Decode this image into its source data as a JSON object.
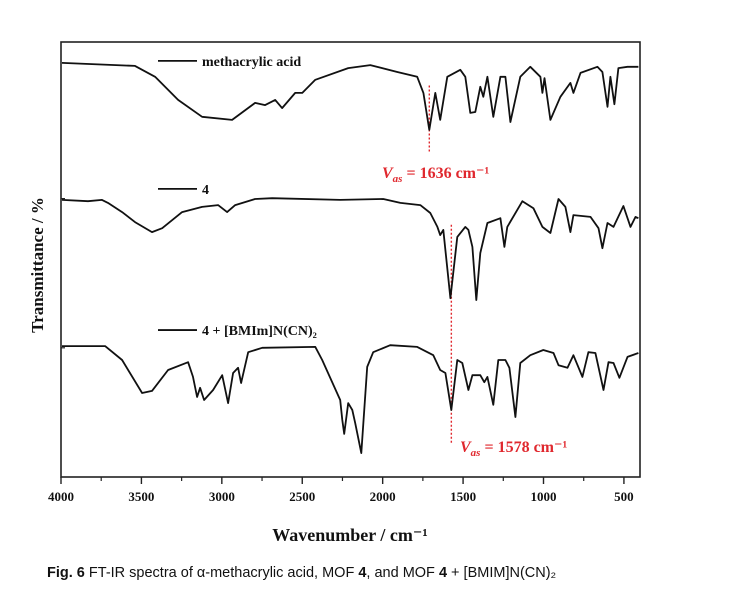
{
  "chart_data": {
    "type": "line",
    "title": "",
    "xlabel": "Wavenumber / cm⁻¹",
    "ylabel": "Transmittance / %",
    "xlim": [
      4000,
      400
    ],
    "ylim": [
      0,
      100
    ],
    "x_reversed": true,
    "grid": false,
    "xticks": [
      4000,
      3500,
      3000,
      2500,
      2000,
      1500,
      1000,
      500
    ],
    "xtick_labels": [
      "4000",
      "3500",
      "3000",
      "2500",
      "2000",
      "1500",
      "1000",
      "500"
    ],
    "xminor_ticks": [
      3750,
      3250,
      2750,
      2250,
      1750,
      1250,
      750
    ],
    "yticks_unlabeled": [
      64,
      29.7
    ],
    "legend_placement": "inline-left",
    "line_color": "#111111",
    "annotation_color": "#e0282e",
    "series": [
      {
        "name": "methacrylic acid",
        "x": [
          3994,
          3540,
          3415,
          3272,
          3123,
          2936,
          2793,
          2731,
          2668,
          2625,
          2544,
          2500,
          2419,
          2214,
          2077,
          1909,
          1785,
          1747,
          1710,
          1673,
          1642,
          1598,
          1517,
          1486,
          1455,
          1424,
          1393,
          1374,
          1349,
          1312,
          1268,
          1237,
          1206,
          1144,
          1082,
          1019,
          1007,
          994,
          957,
          895,
          833,
          814,
          770,
          665,
          634,
          602,
          584,
          559,
          534,
          478,
          410
        ],
        "y": [
          95.2,
          94.5,
          92,
          86.7,
          82.8,
          82.1,
          86,
          85.5,
          86.7,
          84.8,
          88.3,
          88.3,
          91.3,
          94,
          94.7,
          93.1,
          92,
          88.3,
          79.8,
          88.3,
          82.1,
          92,
          93.6,
          92,
          83.7,
          83.9,
          89.7,
          87.4,
          92,
          82.8,
          92,
          92,
          81.6,
          92,
          94.3,
          92,
          88.3,
          91.7,
          82.1,
          87.4,
          90.6,
          88.3,
          92.9,
          94.3,
          93.1,
          85.1,
          92,
          85.7,
          94,
          94.3,
          94.3
        ]
      },
      {
        "name": "4",
        "x": [
          3994,
          3832,
          3745,
          3708,
          3620,
          3540,
          3434,
          3371,
          3247,
          3123,
          3023,
          2967,
          2917,
          2793,
          2687,
          2264,
          1996,
          1890,
          1766,
          1704,
          1660,
          1642,
          1623,
          1579,
          1536,
          1486,
          1467,
          1442,
          1418,
          1393,
          1349,
          1268,
          1243,
          1225,
          1131,
          1063,
          1007,
          957,
          907,
          864,
          833,
          814,
          708,
          658,
          634,
          602,
          565,
          503,
          459,
          428,
          410
        ],
        "y": [
          63.7,
          63.4,
          63.7,
          63,
          60.9,
          58.6,
          56.3,
          57.2,
          60.9,
          62.1,
          62.5,
          60.9,
          62.5,
          63.9,
          64.1,
          63.7,
          63.9,
          63,
          62.5,
          60.7,
          57.5,
          55.6,
          56.8,
          41.1,
          55.2,
          57.5,
          56.8,
          52.9,
          40.7,
          51.5,
          58.4,
          59.5,
          52.9,
          57.5,
          63.4,
          61.8,
          57.5,
          56.1,
          63.9,
          62.1,
          56.3,
          60.2,
          59.8,
          57.2,
          52.6,
          58.4,
          57.5,
          62.3,
          57.5,
          59.8,
          59.5
        ]
      },
      {
        "name": "4 + [BMIm]N(CN)₂",
        "x": [
          3994,
          3726,
          3620,
          3496,
          3434,
          3334,
          3210,
          3179,
          3154,
          3135,
          3110,
          3054,
          2998,
          2961,
          2930,
          2899,
          2880,
          2836,
          2749,
          2419,
          2376,
          2264,
          2251,
          2239,
          2214,
          2189,
          2171,
          2133,
          2096,
          2059,
          1953,
          1785,
          1685,
          1642,
          1610,
          1573,
          1536,
          1505,
          1467,
          1442,
          1393,
          1368,
          1349,
          1312,
          1281,
          1237,
          1212,
          1175,
          1144,
          1082,
          1001,
          938,
          907,
          851,
          814,
          758,
          721,
          677,
          627,
          596,
          565,
          528,
          478,
          410
        ],
        "y": [
          30.1,
          30.1,
          26.9,
          19.3,
          19.8,
          24.6,
          26.4,
          23,
          18.4,
          20.5,
          17.7,
          20,
          23.4,
          17,
          23.9,
          25.1,
          21.6,
          28.7,
          29.7,
          29.9,
          26.9,
          17.7,
          13.1,
          9.9,
          17,
          15.4,
          12.4,
          5.5,
          25.3,
          28.7,
          30.3,
          29.9,
          28,
          24.6,
          23.9,
          15.4,
          26.9,
          26.2,
          20,
          23.4,
          23.4,
          21.8,
          23,
          16.6,
          26.9,
          26.9,
          25.1,
          13.8,
          26.2,
          28,
          29.2,
          28.5,
          25.7,
          25.1,
          28,
          23,
          28.7,
          28.5,
          20,
          26.4,
          26.2,
          22.8,
          27.6,
          28.5
        ]
      }
    ],
    "annotations": [
      {
        "symbol": "V",
        "subscript": "as",
        "text": " = 1636 cm⁻¹",
        "x": 1710,
        "y_range": [
          74.5,
          90
        ]
      },
      {
        "symbol": "V",
        "subscript": "as",
        "text": " = 1578 cm⁻¹",
        "x": 1573,
        "y_range": [
          7.4,
          58
        ]
      }
    ]
  },
  "caption": {
    "fig_label": "Fig. 6",
    "text_1": " FT-IR spectra of α-methacrylic acid, MOF ",
    "bold_1": "4",
    "text_2": ", and MOF ",
    "bold_2": "4",
    "text_3": " + [BMIM]N(CN)₂"
  }
}
